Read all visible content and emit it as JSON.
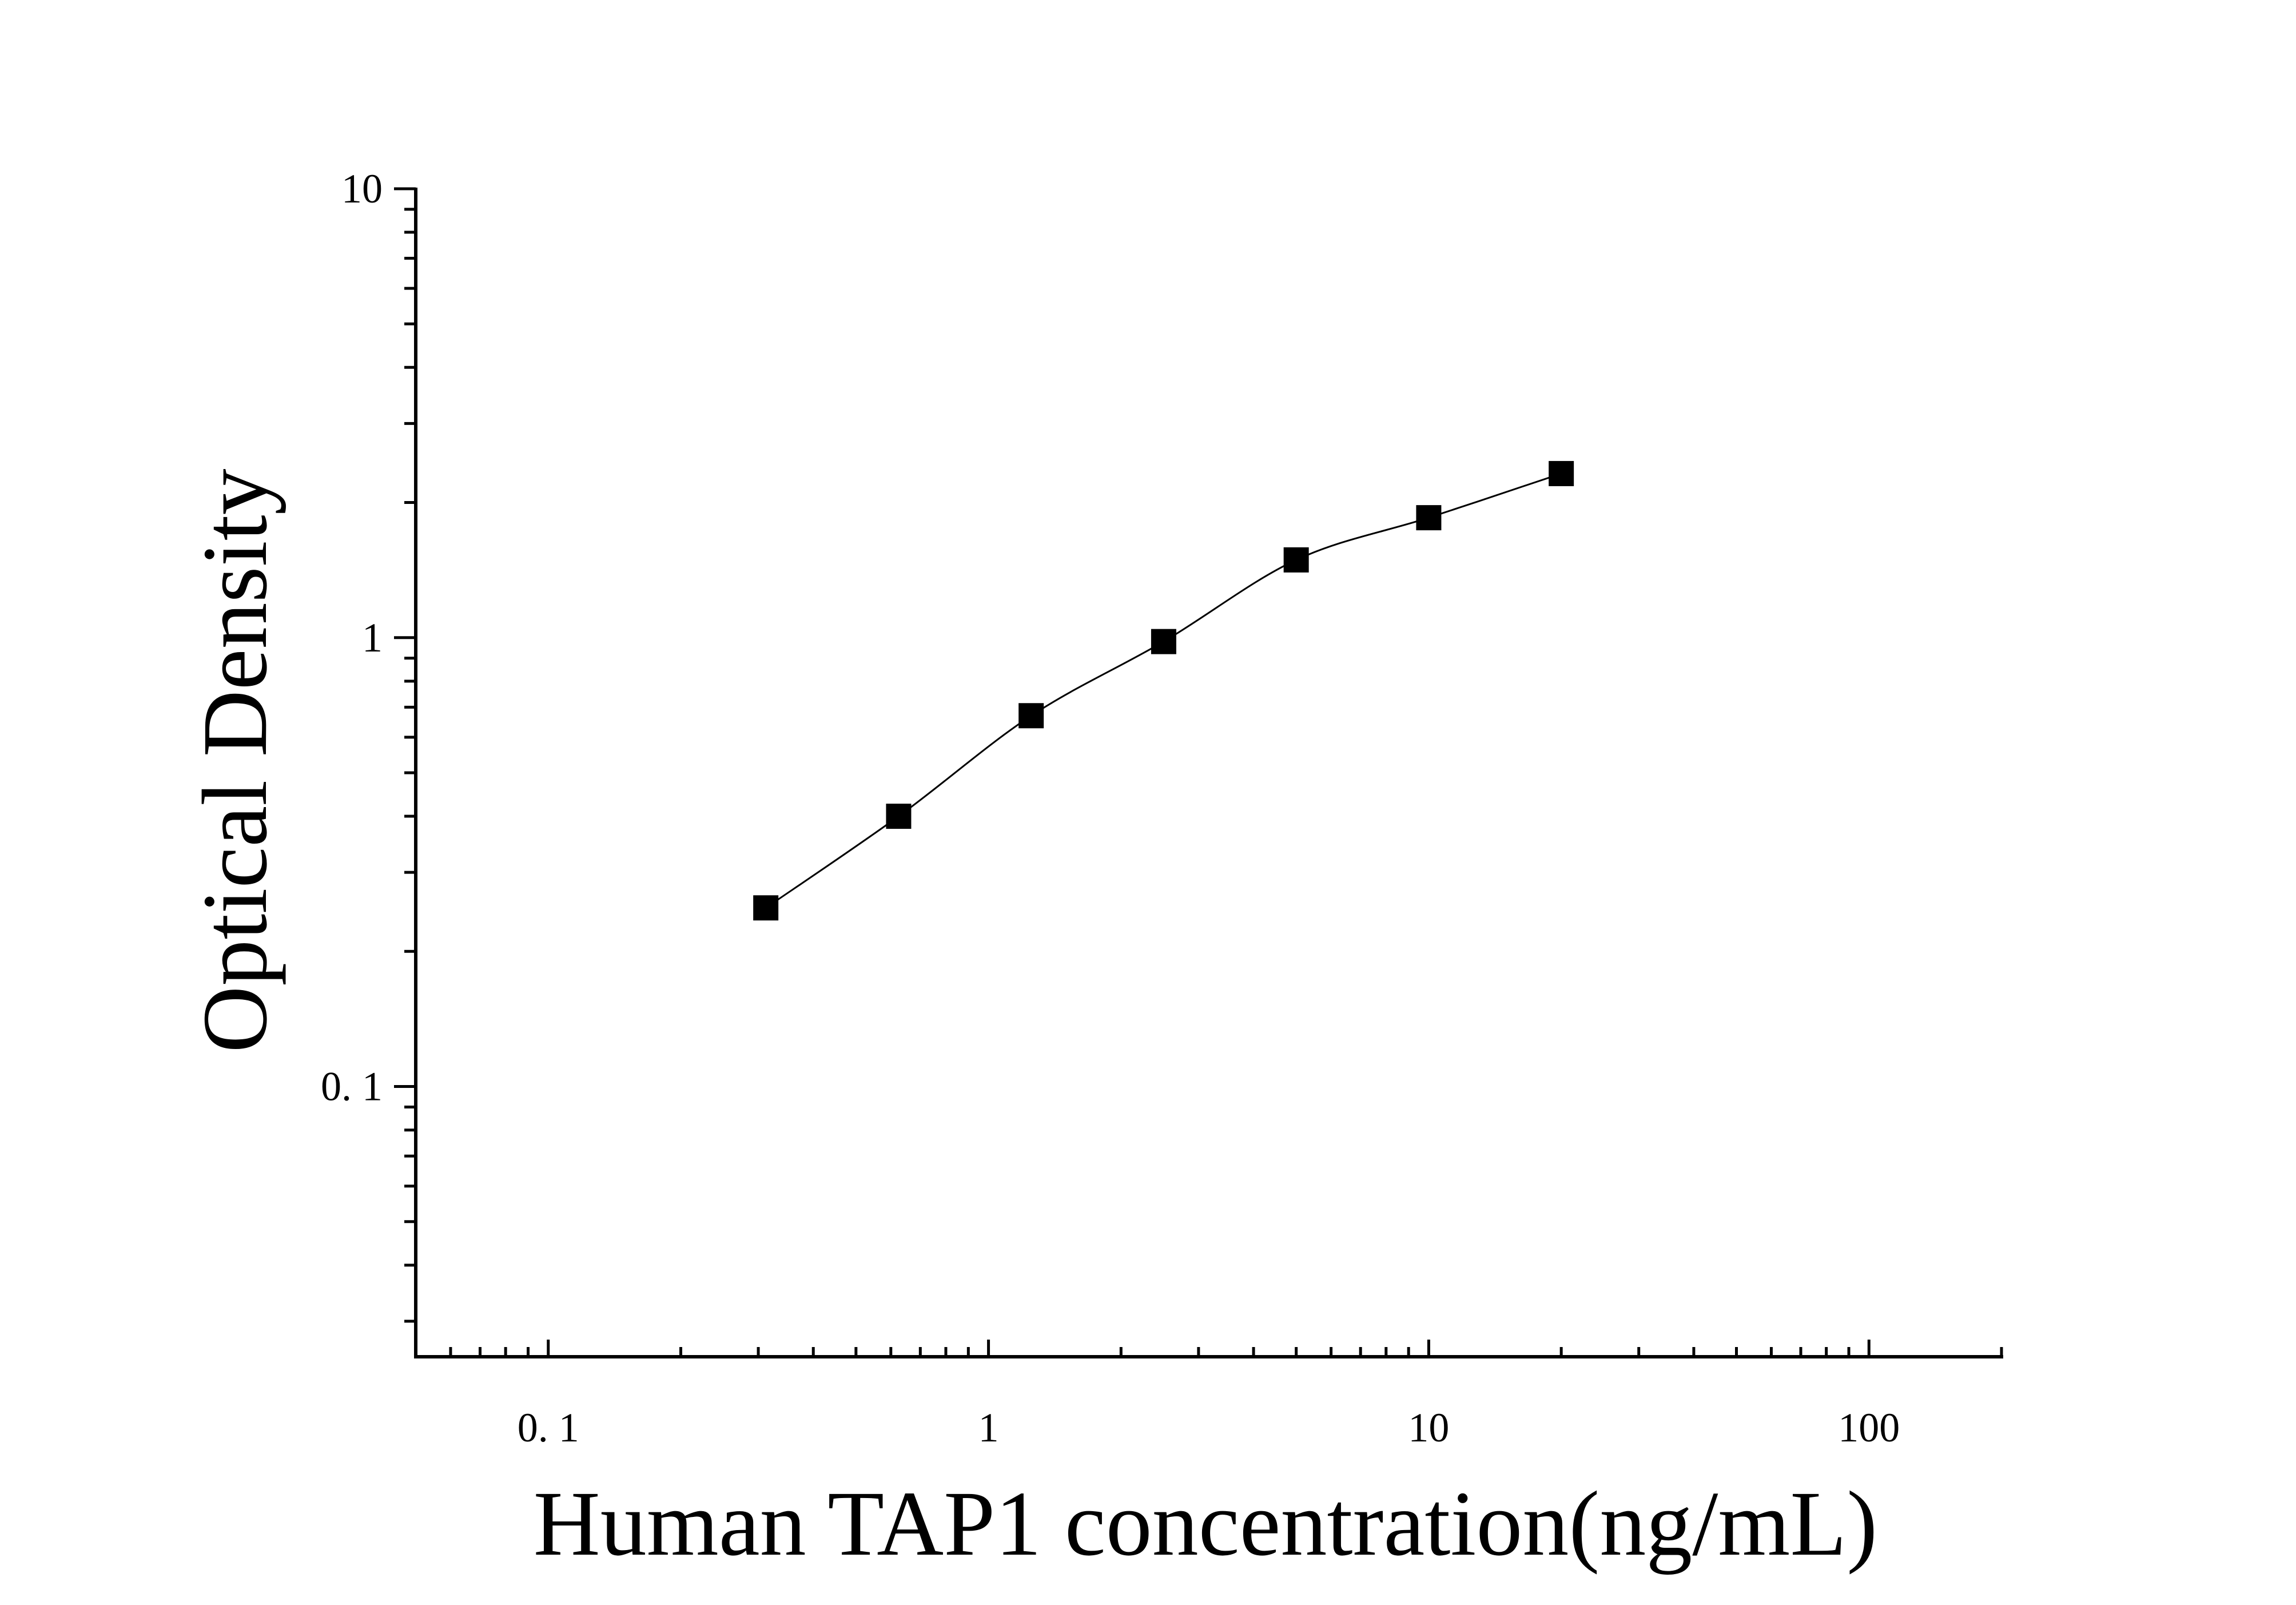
{
  "chart_data": {
    "type": "scatter",
    "xlabel": "Human TAP1 concentration(ng/mL)",
    "ylabel": "Optical Density",
    "x_scale": "log",
    "y_scale": "log",
    "xlim": [
      0.05,
      200
    ],
    "ylim": [
      0.025,
      10
    ],
    "x_ticks": [
      {
        "value": 0.1,
        "label": "0. 1"
      },
      {
        "value": 1,
        "label": "1"
      },
      {
        "value": 10,
        "label": "10"
      },
      {
        "value": 100,
        "label": "100"
      }
    ],
    "y_ticks": [
      {
        "value": 0.1,
        "label": "0. 1"
      },
      {
        "value": 1,
        "label": "1"
      },
      {
        "value": 10,
        "label": "10"
      }
    ],
    "grid": false,
    "legend": "none",
    "series": [
      {
        "marker": "square",
        "color": "#000000",
        "fit_line": true,
        "x": [
          0.312,
          0.625,
          1.25,
          2.5,
          5,
          10,
          20
        ],
        "y": [
          0.25,
          0.4,
          0.67,
          0.98,
          1.49,
          1.85,
          2.32
        ]
      }
    ]
  }
}
